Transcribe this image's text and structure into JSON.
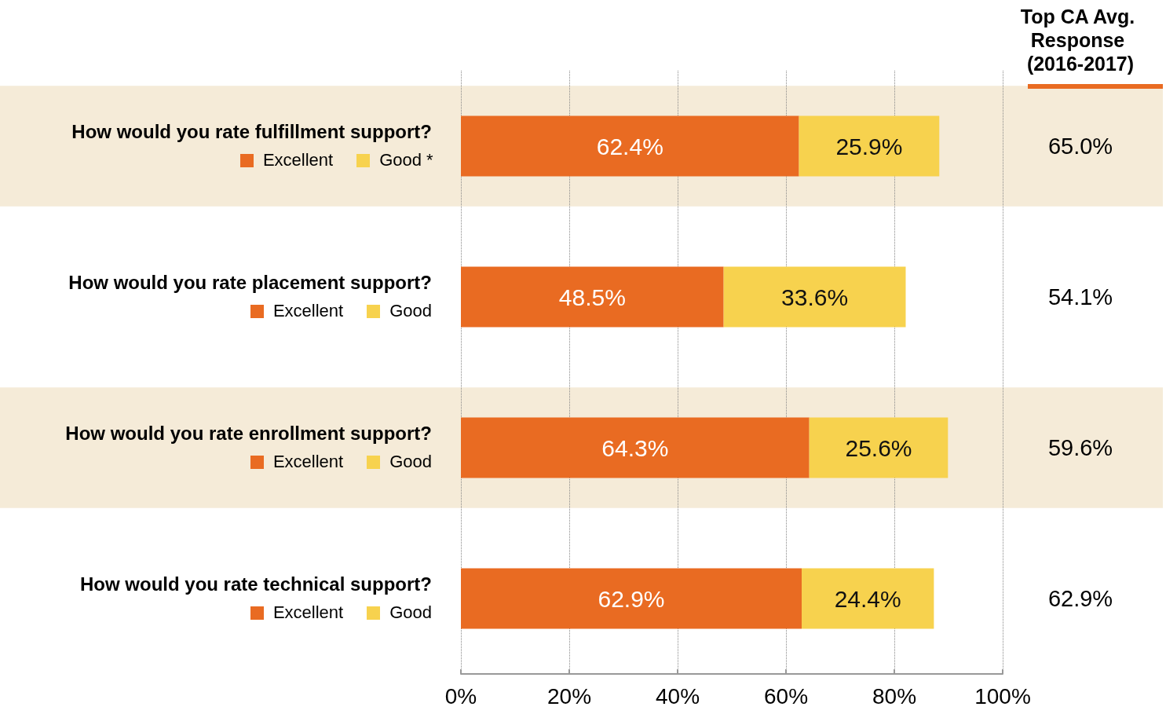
{
  "chart_data": {
    "type": "bar",
    "orientation": "horizontal",
    "stacked": true,
    "categories": [
      "How would you rate fulfillment support?",
      "How would you rate placement support?",
      "How would you rate enrollment support?",
      "How would you rate technical support?"
    ],
    "series": [
      {
        "name": "Excellent",
        "color": "#e96b22",
        "values": [
          62.4,
          48.5,
          64.3,
          62.9
        ],
        "value_labels": [
          "62.4%",
          "48.5%",
          "64.3%",
          "62.9%"
        ]
      },
      {
        "name": "Good",
        "color": "#f7d24e",
        "values": [
          25.9,
          33.6,
          25.6,
          24.4
        ],
        "value_labels": [
          "25.9%",
          "33.6%",
          "25.6%",
          "24.4%"
        ]
      }
    ],
    "xlim": [
      0,
      100
    ],
    "xticks": [
      {
        "value": 0,
        "label": "0%"
      },
      {
        "value": 20,
        "label": "20%"
      },
      {
        "value": 40,
        "label": "40%"
      },
      {
        "value": 60,
        "label": "60%"
      },
      {
        "value": 80,
        "label": "80%"
      },
      {
        "value": 100,
        "label": "100%"
      }
    ],
    "grid": "x",
    "legend": "left",
    "y2label": "Top CA Avg. Response (2016-2017)",
    "bands": [
      {
        "axis": "y",
        "from": "How would you rate fulfillment support?",
        "to": "How would you rate fulfillment support?",
        "color": "#f5ebd8"
      },
      {
        "axis": "y",
        "from": "How would you rate enrollment support?",
        "to": "How would you rate enrollment support?",
        "color": "#f5ebd8"
      }
    ],
    "annotations": [
      "*",
      "65.0%",
      "54.1%",
      "59.6%",
      "62.9%"
    ]
  }
}
